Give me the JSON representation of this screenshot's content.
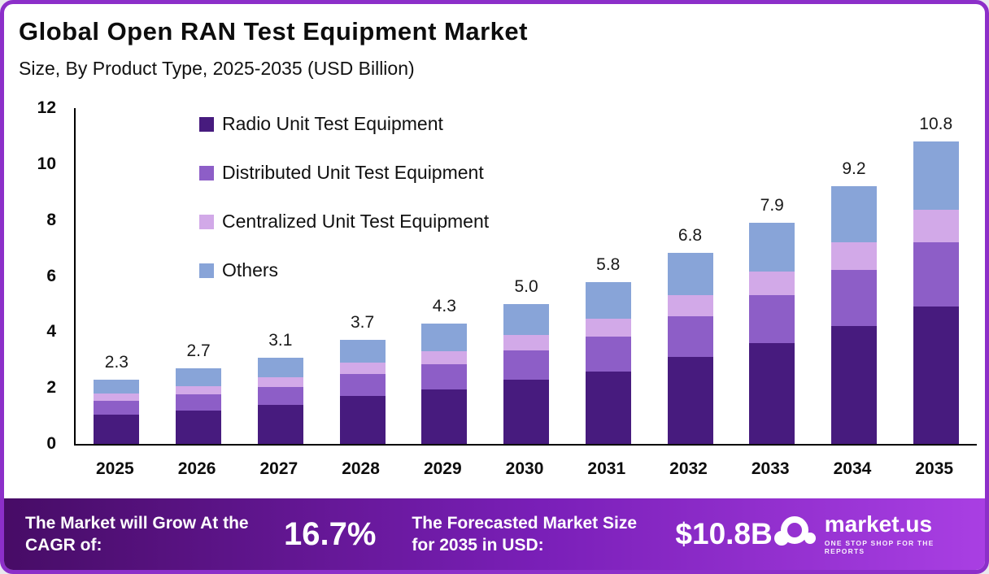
{
  "title": "Global Open RAN Test Equipment Market",
  "subtitle": "Size, By Product Type, 2025-2035 (USD Billion)",
  "chart_data": {
    "type": "bar",
    "stacked": true,
    "title": "Global Open RAN Test Equipment Market Size, By Product Type, 2025-2035 (USD Billion)",
    "categories": [
      "2025",
      "2026",
      "2027",
      "2028",
      "2029",
      "2030",
      "2031",
      "2032",
      "2033",
      "2034",
      "2035"
    ],
    "series": [
      {
        "name": "Radio Unit Test Equipment",
        "color": "#471b7e",
        "values": [
          1.05,
          1.2,
          1.4,
          1.7,
          1.95,
          2.3,
          2.6,
          3.1,
          3.6,
          4.2,
          4.9
        ]
      },
      {
        "name": "Distributed Unit Test Equipment",
        "color": "#8d5ec7",
        "values": [
          0.5,
          0.57,
          0.65,
          0.78,
          0.9,
          1.05,
          1.25,
          1.45,
          1.7,
          2.0,
          2.3
        ]
      },
      {
        "name": "Centralized Unit Test Equipment",
        "color": "#d2a9e8",
        "values": [
          0.25,
          0.3,
          0.34,
          0.4,
          0.47,
          0.55,
          0.63,
          0.75,
          0.85,
          1.0,
          1.15
        ]
      },
      {
        "name": "Others",
        "color": "#88a4d8",
        "values": [
          0.5,
          0.63,
          0.71,
          0.82,
          0.98,
          1.1,
          1.32,
          1.5,
          1.75,
          2.0,
          2.45
        ]
      }
    ],
    "totals": [
      2.3,
      2.7,
      3.1,
      3.7,
      4.3,
      5.0,
      5.8,
      6.8,
      7.9,
      9.2,
      10.8
    ],
    "total_labels": [
      "2.3",
      "2.7",
      "3.1",
      "3.7",
      "4.3",
      "5.0",
      "5.8",
      "6.8",
      "7.9",
      "9.2",
      "10.8"
    ],
    "y_ticks": [
      0,
      2,
      4,
      6,
      8,
      10,
      12
    ],
    "ylim": [
      0,
      12
    ],
    "grid": false,
    "legend_position": "inside-upper-left"
  },
  "footer": {
    "cagr_label": "The Market will Grow At the CAGR of:",
    "cagr_value": "16.7%",
    "forecast_label": "The Forecasted Market Size for 2035 in USD:",
    "forecast_value": "$10.8B",
    "brand": "market.us",
    "brand_tagline": "ONE STOP SHOP FOR THE REPORTS"
  }
}
